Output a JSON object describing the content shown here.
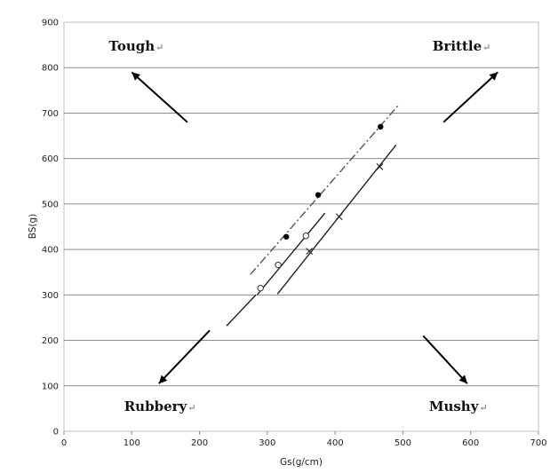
{
  "chart_data": {
    "type": "scatter",
    "xlabel": "Gs(g/cm)",
    "ylabel": "BS(g)",
    "xlim": [
      0,
      700
    ],
    "ylim": [
      0,
      900
    ],
    "x_ticks": [
      0,
      100,
      200,
      300,
      400,
      500,
      600,
      700
    ],
    "y_ticks": [
      0,
      100,
      200,
      300,
      400,
      500,
      600,
      700,
      800,
      900
    ],
    "grid": "horizontal",
    "series": [
      {
        "marker": "filled-circle",
        "line": "dash-dot",
        "points": [
          [
            328,
            428
          ],
          [
            375,
            520
          ],
          [
            467,
            670
          ]
        ],
        "line_from": [
          275,
          345
        ],
        "line_to": [
          495,
          720
        ]
      },
      {
        "marker": "open-circle",
        "line": "solid",
        "points": [
          [
            290,
            315
          ],
          [
            316,
            366
          ],
          [
            357,
            430
          ]
        ],
        "line_from": [
          285,
          300
        ],
        "line_to": [
          385,
          480
        ]
      },
      {
        "marker": "cross",
        "line": "solid",
        "points": [
          [
            362,
            396
          ],
          [
            406,
            472
          ],
          [
            466,
            582
          ]
        ],
        "line_from": [
          315,
          302
        ],
        "line_to": [
          490,
          630
        ]
      }
    ],
    "trend_lines": [
      {
        "from": [
          240,
          232
        ],
        "to": [
          283,
          300
        ]
      }
    ],
    "annotations": [
      {
        "text": "Tough",
        "mark": "↵",
        "x": 100,
        "y": 838,
        "arrow_from": [
          182,
          680
        ],
        "arrow_to": [
          100,
          790
        ]
      },
      {
        "text": "Brittle",
        "mark": "↵",
        "x": 580,
        "y": 838,
        "arrow_from": [
          560,
          680
        ],
        "arrow_to": [
          640,
          790
        ]
      },
      {
        "text": "Rubbery",
        "mark": "↵",
        "x": 135,
        "y": 45,
        "arrow_from": [
          215,
          222
        ],
        "arrow_to": [
          140,
          105
        ]
      },
      {
        "text": "Mushy",
        "mark": "↵",
        "x": 575,
        "y": 45,
        "arrow_from": [
          530,
          210
        ],
        "arrow_to": [
          595,
          105
        ]
      }
    ]
  }
}
